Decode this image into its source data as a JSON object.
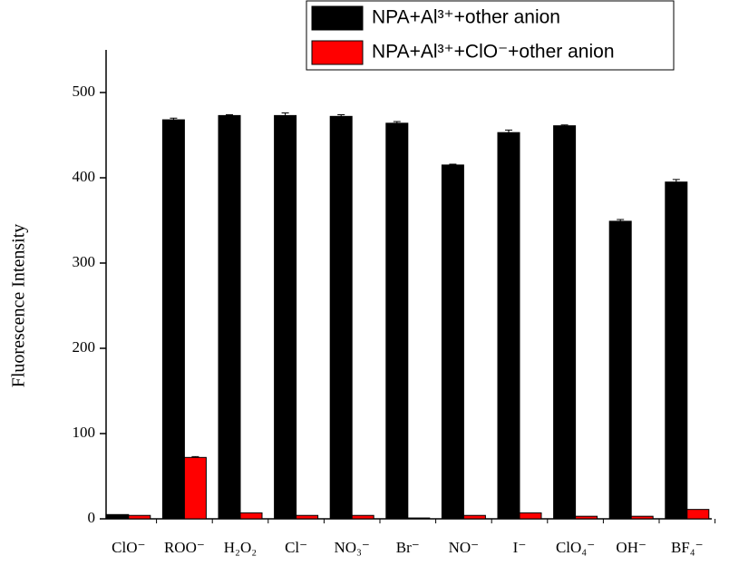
{
  "chart_data": {
    "type": "bar",
    "y_label": "Fluorescence Intensity",
    "categories": [
      "ClO⁻",
      "ROO⁻",
      "H₂O₂",
      "Cl⁻",
      "NO₃⁻",
      "Br⁻",
      "NO⁻",
      "I⁻",
      "ClO₄⁻",
      "OH⁻",
      "BF₄⁻"
    ],
    "series": [
      {
        "name": "NPA+Al³⁺+other anion",
        "color": "#000000",
        "values": [
          5,
          468,
          473,
          473,
          472,
          464,
          415,
          453,
          461,
          349,
          395
        ],
        "errors": [
          0,
          2,
          1,
          3,
          2,
          2,
          1,
          3,
          1,
          2,
          3
        ]
      },
      {
        "name": "NPA+Al³⁺+ClO⁻+other anion",
        "color": "#ff0000",
        "values": [
          4,
          72,
          7,
          4,
          4,
          1,
          4,
          7,
          3,
          3,
          11
        ],
        "errors": [
          0,
          1,
          0,
          0,
          0,
          0,
          0,
          0,
          0,
          0,
          0
        ]
      }
    ],
    "ylim": [
      0,
      550
    ],
    "yticks": [
      0,
      100,
      200,
      300,
      400,
      500
    ],
    "legend": "top-right"
  }
}
